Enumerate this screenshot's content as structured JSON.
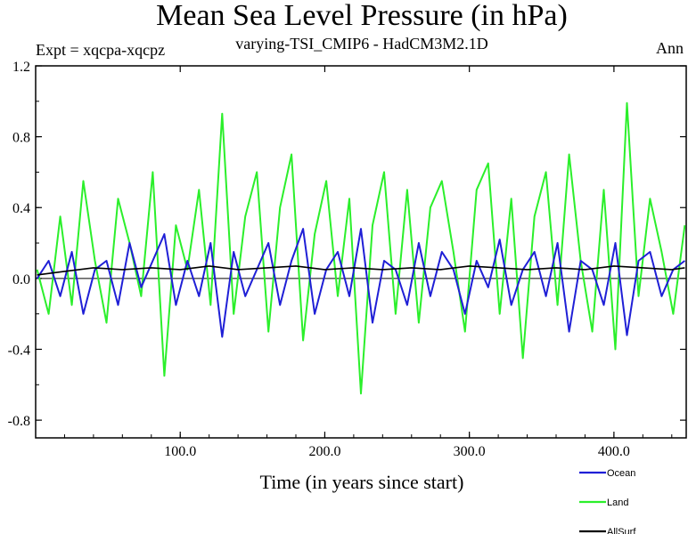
{
  "header": {
    "title": "Mean Sea Level Pressure (in hPa)",
    "expt": "Expt = xqcpa-xqcpz",
    "subtitle": "varying-TSI_CMIP6 - HadCM3M2.1D",
    "period": "Ann"
  },
  "colors": {
    "ocean": "#1f1fd6",
    "land": "#2bef2b",
    "allsurf": "#000000",
    "axis": "#000000"
  },
  "chart_data": {
    "type": "line",
    "title": "Mean Sea Level Pressure (in hPa)",
    "xlabel": "Time (in years since start)",
    "ylabel": "",
    "xlim": [
      0,
      450
    ],
    "ylim": [
      -0.9,
      1.2
    ],
    "xticks": [
      100,
      200,
      300,
      400
    ],
    "xtick_labels": [
      "100.0",
      "200.0",
      "300.0",
      "400.0"
    ],
    "yticks": [
      1.2,
      0.8,
      0.4,
      0.0,
      -0.4,
      -0.8
    ],
    "ytick_labels": [
      "1.2",
      "0.8",
      "0.4",
      "0.0",
      "-0.4",
      "-0.8"
    ],
    "legend_position": "bottom-right",
    "series": [
      {
        "name": "Land",
        "color": "#2bef2b",
        "x": [
          1,
          9,
          17,
          25,
          33,
          41,
          49,
          57,
          65,
          73,
          81,
          89,
          97,
          105,
          113,
          121,
          129,
          137,
          145,
          153,
          161,
          169,
          177,
          185,
          193,
          201,
          209,
          217,
          225,
          233,
          241,
          249,
          257,
          265,
          273,
          281,
          289,
          297,
          305,
          313,
          321,
          329,
          337,
          345,
          353,
          361,
          369,
          377,
          385,
          393,
          401,
          409,
          417,
          425,
          433,
          441,
          449
        ],
        "values": [
          0.05,
          -0.2,
          0.35,
          -0.15,
          0.55,
          0.1,
          -0.25,
          0.45,
          0.2,
          -0.1,
          0.6,
          -0.55,
          0.3,
          0.05,
          0.5,
          -0.15,
          0.93,
          -0.2,
          0.35,
          0.6,
          -0.3,
          0.4,
          0.7,
          -0.35,
          0.25,
          0.55,
          -0.1,
          0.45,
          -0.65,
          0.3,
          0.6,
          -0.2,
          0.5,
          -0.25,
          0.4,
          0.55,
          0.15,
          -0.3,
          0.5,
          0.65,
          -0.2,
          0.45,
          -0.45,
          0.35,
          0.6,
          -0.15,
          0.7,
          0.1,
          -0.3,
          0.5,
          -0.4,
          0.99,
          -0.1,
          0.45,
          0.15,
          -0.2,
          0.3
        ]
      },
      {
        "name": "Ocean",
        "color": "#1f1fd6",
        "x": [
          1,
          9,
          17,
          25,
          33,
          41,
          49,
          57,
          65,
          73,
          81,
          89,
          97,
          105,
          113,
          121,
          129,
          137,
          145,
          153,
          161,
          169,
          177,
          185,
          193,
          201,
          209,
          217,
          225,
          233,
          241,
          249,
          257,
          265,
          273,
          281,
          289,
          297,
          305,
          313,
          321,
          329,
          337,
          345,
          353,
          361,
          369,
          377,
          385,
          393,
          401,
          409,
          417,
          425,
          433,
          441,
          449
        ],
        "values": [
          0.0,
          0.1,
          -0.1,
          0.15,
          -0.2,
          0.05,
          0.1,
          -0.15,
          0.2,
          -0.05,
          0.1,
          0.25,
          -0.15,
          0.1,
          -0.1,
          0.2,
          -0.33,
          0.15,
          -0.1,
          0.05,
          0.2,
          -0.15,
          0.1,
          0.28,
          -0.2,
          0.05,
          0.15,
          -0.1,
          0.28,
          -0.25,
          0.1,
          0.05,
          -0.15,
          0.2,
          -0.1,
          0.15,
          0.05,
          -0.2,
          0.1,
          -0.05,
          0.22,
          -0.15,
          0.05,
          0.15,
          -0.1,
          0.2,
          -0.3,
          0.1,
          0.05,
          -0.15,
          0.2,
          -0.32,
          0.1,
          0.15,
          -0.1,
          0.05,
          0.1
        ]
      },
      {
        "name": "AllSurf",
        "color": "#000000",
        "x": [
          1,
          20,
          40,
          60,
          80,
          100,
          120,
          140,
          160,
          180,
          200,
          220,
          240,
          260,
          280,
          300,
          320,
          340,
          360,
          380,
          400,
          420,
          440,
          449
        ],
        "values": [
          0.02,
          0.04,
          0.06,
          0.05,
          0.06,
          0.05,
          0.07,
          0.05,
          0.06,
          0.07,
          0.05,
          0.06,
          0.05,
          0.06,
          0.05,
          0.07,
          0.06,
          0.05,
          0.06,
          0.05,
          0.07,
          0.06,
          0.05,
          0.06
        ]
      }
    ]
  }
}
